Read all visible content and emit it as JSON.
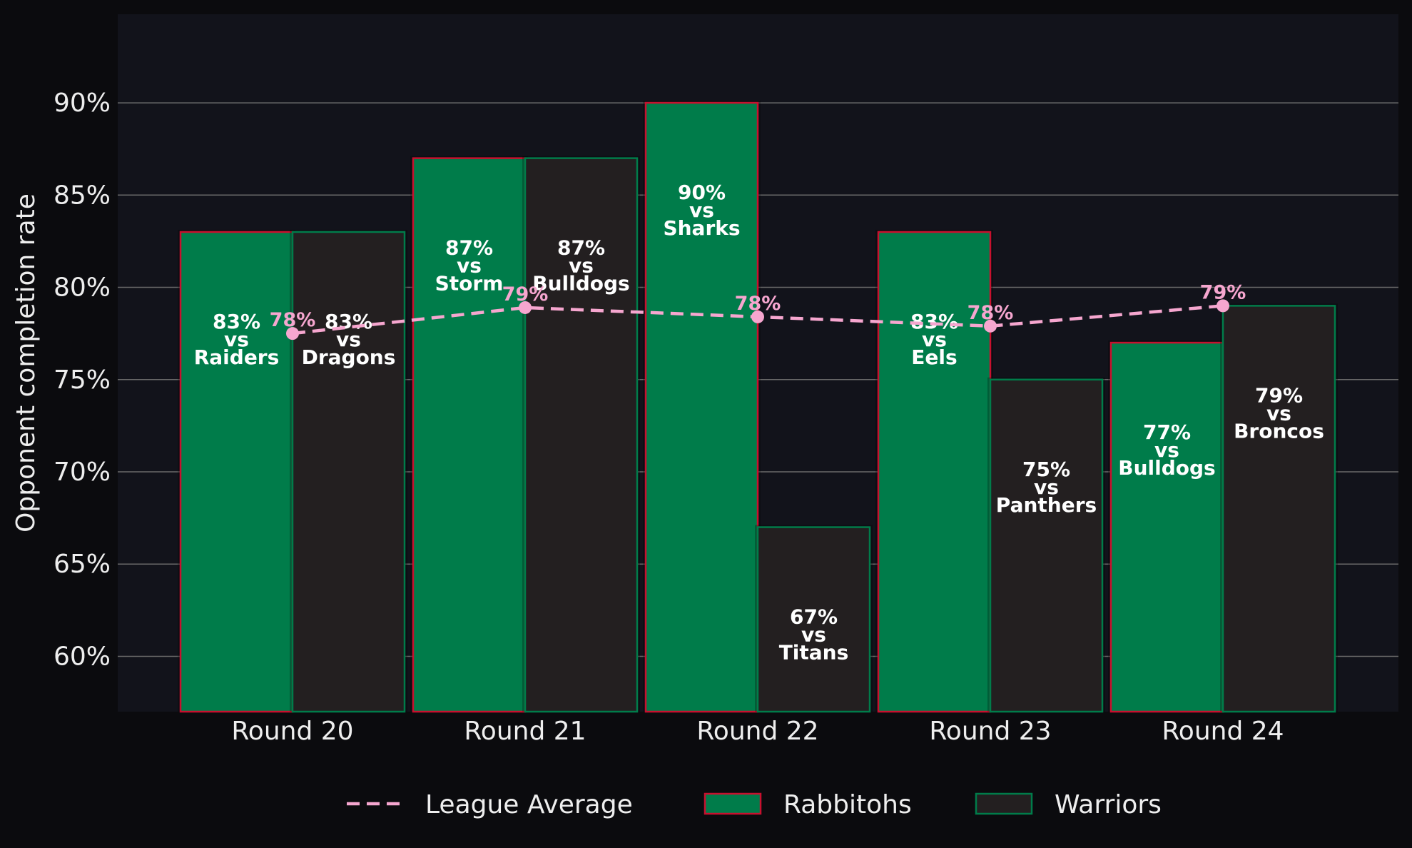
{
  "chart_data": {
    "type": "bar",
    "ylabel": "Opponent completion rate",
    "xlabel": "",
    "title": "",
    "ylim": [
      57,
      94.8
    ],
    "yticks": [
      60,
      65,
      70,
      75,
      80,
      85,
      90
    ],
    "ytick_labels": [
      "60%",
      "65%",
      "70%",
      "75%",
      "80%",
      "85%",
      "90%"
    ],
    "categories": [
      "Round 20",
      "Round 21",
      "Round 22",
      "Round 23",
      "Round 24"
    ],
    "series": [
      {
        "name": "Rabbitohs",
        "values": [
          83,
          87,
          90,
          83,
          77
        ],
        "labels": [
          [
            "83%",
            "vs",
            "Raiders"
          ],
          [
            "87%",
            "vs",
            "Storm"
          ],
          [
            "90%",
            "vs",
            "Sharks"
          ],
          [
            "83%",
            "vs",
            "Eels"
          ],
          [
            "77%",
            "vs",
            "Bulldogs"
          ]
        ],
        "fill": "#007c4a",
        "edge": "#c8102e"
      },
      {
        "name": "Warriors",
        "values": [
          83,
          87,
          67,
          75,
          79
        ],
        "labels": [
          [
            "83%",
            "vs",
            "Dragons"
          ],
          [
            "87%",
            "vs",
            "Bulldogs"
          ],
          [
            "67%",
            "vs",
            "Titans"
          ],
          [
            "75%",
            "vs",
            "Panthers"
          ],
          [
            "79%",
            "vs",
            "Broncos"
          ]
        ],
        "fill": "#231f20",
        "edge": "#007c4a"
      },
      {
        "name": "League Average",
        "type": "line",
        "values": [
          77.5,
          78.9,
          78.4,
          77.9,
          79.0
        ],
        "labels": [
          "78%",
          "79%",
          "78%",
          "78%",
          "79%"
        ],
        "color": "#f6a6cf",
        "style": "dashed"
      }
    ],
    "legend": {
      "placement": "bottom-center",
      "entries": [
        "League Average",
        "Rabbitohs",
        "Warriors"
      ]
    },
    "grid": "horizontal",
    "colors": {
      "background": "#0b0b0e",
      "plot_background": "#12131b",
      "grid": "#6a6a6a",
      "text": "#eeeeee"
    }
  }
}
